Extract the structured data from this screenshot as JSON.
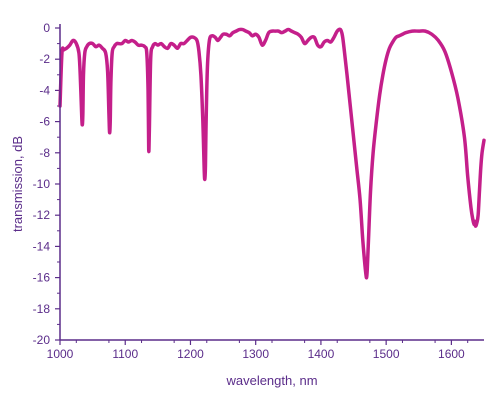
{
  "chart_data": {
    "type": "line",
    "title": "",
    "xlabel": "wavelength, nm",
    "ylabel": "transmission, dB",
    "xlim": [
      1000,
      1650
    ],
    "ylim": [
      -20,
      0
    ],
    "x_ticks": [
      1000,
      1100,
      1200,
      1300,
      1400,
      1500,
      1600
    ],
    "y_ticks": [
      0,
      -2,
      -4,
      -6,
      -8,
      -10,
      -12,
      -14,
      -16,
      -18,
      -20
    ],
    "grid": false,
    "legend": "none",
    "colors": {
      "series": "#c41f8a",
      "axis": "#5b2d8a"
    },
    "series": [
      {
        "x": [
          1000,
          1003,
          1006,
          1010,
          1015,
          1020,
          1025,
          1029,
          1031,
          1033,
          1034,
          1035,
          1036,
          1038,
          1041,
          1045,
          1050,
          1055,
          1060,
          1065,
          1070,
          1073,
          1075,
          1076,
          1077,
          1078,
          1080,
          1083,
          1087,
          1090,
          1095,
          1100,
          1105,
          1110,
          1115,
          1120,
          1125,
          1130,
          1133,
          1135,
          1136,
          1137,
          1139,
          1142,
          1146,
          1150,
          1155,
          1160,
          1165,
          1170,
          1175,
          1180,
          1185,
          1190,
          1195,
          1200,
          1205,
          1210,
          1213,
          1216,
          1219,
          1221,
          1222,
          1223,
          1224,
          1226,
          1229,
          1233,
          1238,
          1242,
          1246,
          1250,
          1255,
          1260,
          1265,
          1270,
          1275,
          1280,
          1285,
          1290,
          1295,
          1300,
          1305,
          1310,
          1315,
          1320,
          1325,
          1330,
          1335,
          1340,
          1345,
          1350,
          1355,
          1360,
          1365,
          1370,
          1375,
          1380,
          1385,
          1390,
          1395,
          1400,
          1405,
          1410,
          1415,
          1420,
          1425,
          1430,
          1433,
          1436,
          1440,
          1445,
          1450,
          1455,
          1460,
          1464,
          1467,
          1469,
          1470,
          1471,
          1473,
          1476,
          1480,
          1485,
          1490,
          1495,
          1500,
          1505,
          1510,
          1515,
          1520,
          1525,
          1530,
          1540,
          1550,
          1560,
          1570,
          1580,
          1590,
          1600,
          1610,
          1620,
          1625,
          1630,
          1633,
          1635,
          1636,
          1637,
          1639,
          1641,
          1643,
          1645,
          1647,
          1650
        ],
        "y": [
          -5.0,
          -1.6,
          -1.4,
          -1.3,
          -1.1,
          -0.8,
          -1.0,
          -1.6,
          -3.0,
          -5.3,
          -6.2,
          -5.6,
          -3.0,
          -1.6,
          -1.2,
          -1.0,
          -1.0,
          -1.2,
          -1.1,
          -1.3,
          -1.6,
          -2.8,
          -5.5,
          -6.7,
          -6.0,
          -3.5,
          -1.6,
          -1.2,
          -1.0,
          -1.0,
          -1.0,
          -0.8,
          -0.9,
          -0.8,
          -0.9,
          -1.1,
          -1.1,
          -1.2,
          -1.6,
          -4.0,
          -7.8,
          -6.5,
          -2.0,
          -1.2,
          -1.0,
          -1.1,
          -1.0,
          -1.2,
          -1.3,
          -1.0,
          -1.1,
          -1.3,
          -1.0,
          -1.0,
          -0.8,
          -0.6,
          -0.6,
          -0.8,
          -1.5,
          -3.0,
          -6.0,
          -9.0,
          -9.7,
          -8.8,
          -6.0,
          -2.5,
          -0.8,
          -0.5,
          -0.6,
          -0.8,
          -0.6,
          -0.4,
          -0.4,
          -0.5,
          -0.3,
          -0.2,
          -0.1,
          -0.1,
          -0.2,
          -0.3,
          -0.5,
          -0.4,
          -0.6,
          -1.1,
          -0.8,
          -0.3,
          -0.2,
          -0.2,
          -0.2,
          -0.3,
          -0.2,
          -0.1,
          -0.2,
          -0.3,
          -0.4,
          -0.6,
          -1.0,
          -0.8,
          -0.6,
          -0.6,
          -1.1,
          -1.2,
          -0.9,
          -0.8,
          -0.9,
          -0.6,
          -0.2,
          -0.1,
          -0.5,
          -1.5,
          -3.0,
          -5.0,
          -7.0,
          -9.0,
          -11.0,
          -13.5,
          -15.0,
          -15.8,
          -16.0,
          -15.5,
          -13.5,
          -10.5,
          -8.0,
          -6.0,
          -4.3,
          -3.0,
          -2.0,
          -1.3,
          -0.9,
          -0.6,
          -0.5,
          -0.4,
          -0.3,
          -0.2,
          -0.2,
          -0.2,
          -0.4,
          -0.8,
          -1.5,
          -2.8,
          -4.5,
          -7.0,
          -9.5,
          -11.5,
          -12.3,
          -12.6,
          -12.4,
          -12.7,
          -12.5,
          -12.0,
          -10.5,
          -9.0,
          -8.0,
          -7.2
        ]
      }
    ]
  }
}
